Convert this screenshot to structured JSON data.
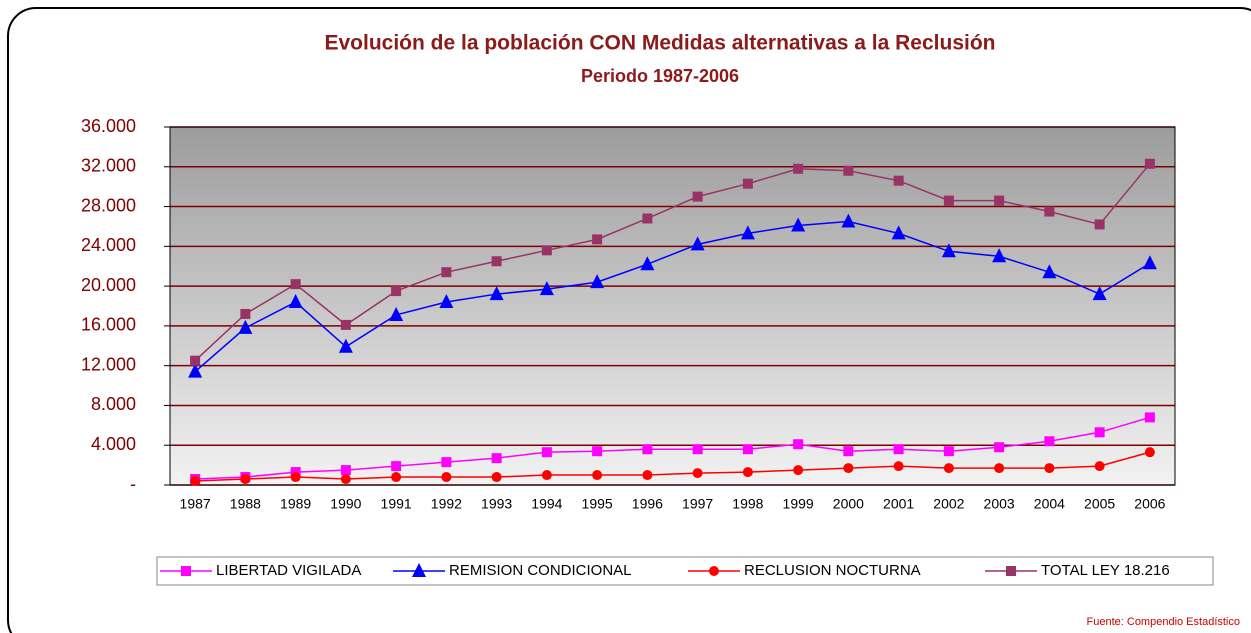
{
  "chart_data": {
    "type": "line",
    "title": "Evolución de la población CON Medidas alternativas a la Reclusión",
    "subtitle": "Periodo 1987-2006",
    "source": "Fuente: Compendio Estadístico",
    "categories": [
      "1987",
      "1988",
      "1989",
      "1990",
      "1991",
      "1992",
      "1993",
      "1994",
      "1995",
      "1996",
      "1997",
      "1998",
      "1999",
      "2000",
      "2001",
      "2002",
      "2003",
      "2004",
      "2005",
      "2006"
    ],
    "series": [
      {
        "name": "LIBERTAD VIGILADA",
        "color": "#ff00ff",
        "marker": "square",
        "values": [
          600,
          800,
          1300,
          1500,
          1900,
          2300,
          2700,
          3300,
          3400,
          3600,
          3600,
          3600,
          4100,
          3400,
          3600,
          3400,
          3800,
          4400,
          5300,
          6800
        ]
      },
      {
        "name": "REMISION CONDICIONAL",
        "color": "#0000ff",
        "marker": "triangle",
        "values": [
          11400,
          15800,
          18400,
          13900,
          17100,
          18400,
          19200,
          19700,
          20400,
          22200,
          24200,
          25300,
          26100,
          26500,
          25300,
          23500,
          23000,
          21400,
          19200,
          22300
        ]
      },
      {
        "name": "RECLUSION NOCTURNA",
        "color": "#ff0000",
        "marker": "circle",
        "values": [
          400,
          600,
          800,
          600,
          800,
          800,
          800,
          1000,
          1000,
          1000,
          1200,
          1300,
          1500,
          1700,
          1900,
          1700,
          1700,
          1700,
          1900,
          3300
        ]
      },
      {
        "name": "TOTAL LEY 18.216",
        "color": "#993366",
        "marker": "square",
        "values": [
          12500,
          17200,
          20200,
          16100,
          19500,
          21400,
          22500,
          23600,
          24700,
          26800,
          29000,
          30300,
          31800,
          31600,
          30600,
          28600,
          28600,
          27500,
          26200,
          32300
        ]
      }
    ],
    "ylim": [
      0,
      36000
    ],
    "yticks": [
      {
        "value": 0,
        "label": "-"
      },
      {
        "value": 4000,
        "label": "4.000"
      },
      {
        "value": 8000,
        "label": "8.000"
      },
      {
        "value": 12000,
        "label": "12.000"
      },
      {
        "value": 16000,
        "label": "16.000"
      },
      {
        "value": 20000,
        "label": "20.000"
      },
      {
        "value": 24000,
        "label": "24.000"
      },
      {
        "value": 28000,
        "label": "28.000"
      },
      {
        "value": 32000,
        "label": "32.000"
      },
      {
        "value": 36000,
        "label": "36.000"
      }
    ],
    "grid": true,
    "legend": "bottom"
  }
}
